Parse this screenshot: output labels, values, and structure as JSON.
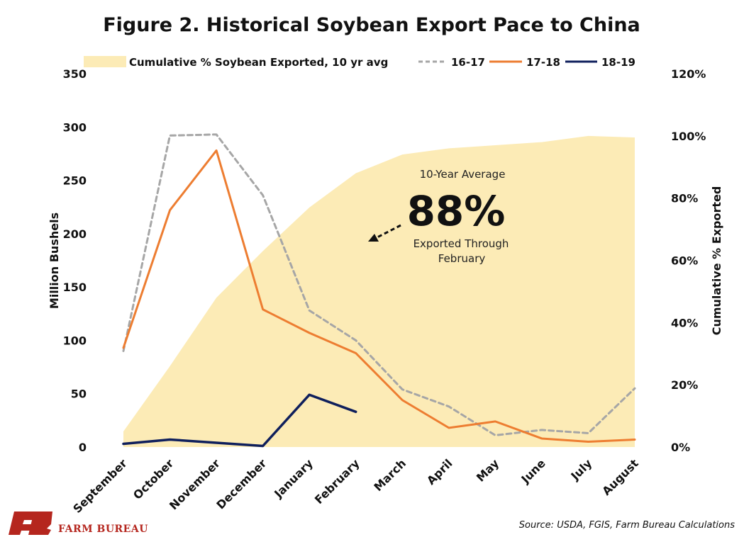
{
  "chart_data": {
    "type": "line",
    "title": "Figure 2. Historical Soybean Export Pace to China",
    "categories": [
      "September",
      "October",
      "November",
      "December",
      "January",
      "February",
      "March",
      "April",
      "May",
      "June",
      "July",
      "August"
    ],
    "ylabel": "Million Bushels",
    "ylim": [
      0,
      350
    ],
    "yticks": [
      "0",
      "50",
      "100",
      "150",
      "200",
      "250",
      "300",
      "350"
    ],
    "y2label": "Cumulative % Exported",
    "y2lim": [
      0,
      120
    ],
    "y2ticks": [
      "0%",
      "20%",
      "40%",
      "60%",
      "80%",
      "100%",
      "120%"
    ],
    "area_series": {
      "name": "Cumulative % Soybean Exported, 10 yr avg",
      "axis": "right",
      "color": "#FCEBB6",
      "values": [
        5,
        26,
        48,
        63,
        77,
        88,
        94,
        96,
        97,
        98,
        100,
        99.5
      ]
    },
    "series": [
      {
        "name": "16-17",
        "style": "dashed",
        "color": "#A6A6A6",
        "values": [
          90,
          292,
          293,
          236,
          128,
          100,
          54,
          38,
          11,
          16,
          13,
          55
        ]
      },
      {
        "name": "17-18",
        "style": "solid",
        "color": "#ED7D31",
        "values": [
          93,
          222,
          278,
          129,
          107,
          88,
          44,
          18,
          24,
          8,
          5,
          7
        ]
      },
      {
        "name": "18-19",
        "style": "solid",
        "color": "#0F1F5C",
        "values": [
          3,
          7,
          4,
          1,
          49,
          33,
          null,
          null,
          null,
          null,
          null,
          null
        ]
      }
    ],
    "grid": false,
    "legend_position": "top"
  },
  "annotation": {
    "line1": "10-Year Average",
    "big": "88%",
    "line2": "Exported Through",
    "line3": "February"
  },
  "source": "Source: USDA, FGIS, Farm Bureau Calculations",
  "logo": {
    "text": "FARM BUREAU",
    "mark": "FB",
    "color": "#B5261E"
  }
}
